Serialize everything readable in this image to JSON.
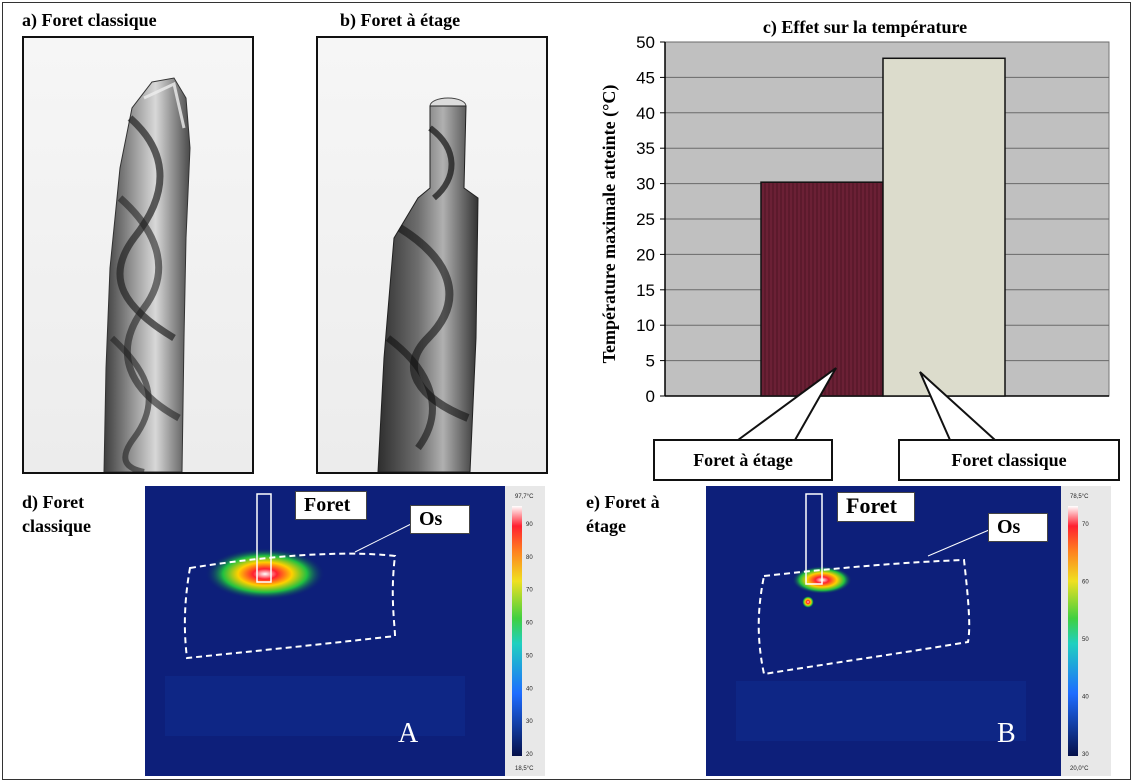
{
  "panels": {
    "a": {
      "label": "a) Foret classique"
    },
    "b": {
      "label": "b) Foret à étage"
    },
    "d": {
      "label_line1": "d) Foret",
      "label_line2": "classique",
      "tag_drill": "Foret",
      "tag_bone": "Os",
      "letter": "A",
      "scale_max": "97,7°C",
      "scale_min": "18,5°C",
      "scale_ticks": [
        "90",
        "80",
        "70",
        "60",
        "50",
        "40",
        "30",
        "20"
      ]
    },
    "e": {
      "label_line1": "e) Foret à",
      "label_line2": "étage",
      "tag_drill": "Foret",
      "tag_bone": "Os",
      "letter": "B",
      "scale_max": "78,5°C",
      "scale_min": "20,0°C",
      "scale_ticks": [
        "70",
        "60",
        "50",
        "40",
        "30"
      ]
    }
  },
  "chart_data": {
    "type": "bar",
    "title": "c) Effet sur la température",
    "ylabel": "Température maximale atteinte (°C)",
    "xlabel": "",
    "ylim": [
      0,
      50
    ],
    "yticks": [
      0,
      5,
      10,
      15,
      20,
      25,
      30,
      35,
      40,
      45,
      50
    ],
    "grid": true,
    "categories": [
      "Foret à étage",
      "Foret classique"
    ],
    "values": [
      30.2,
      47.7
    ],
    "colors": [
      "#6b2035",
      "#dcdccc"
    ],
    "plot_background": "#c0c0c0"
  }
}
